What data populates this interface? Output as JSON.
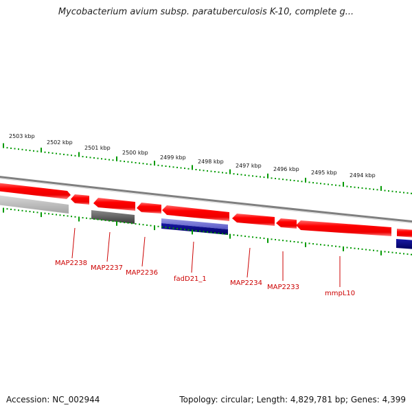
{
  "title": "Mycobacterium avium subsp. paratuberculosis K-10, complete g...",
  "footer": {
    "accession": "Accession: NC_002944",
    "stats": "Topology: circular; Length: 4,829,781 bp; Genes: 4,399"
  },
  "colors": {
    "forward_gene": "#ff0000",
    "reverse_gene": "#000080",
    "pseudo_gene_light": "#b5b5b5",
    "pseudo_gene_dark": "#555555",
    "ruler_tick": "#009900",
    "label": "#cc0000",
    "backbone": "#888888"
  },
  "ruler": {
    "labels": [
      "2503 kbp",
      "2502 kbp",
      "2501 kbp",
      "2500 kbp",
      "2499 kbp",
      "2498 kbp",
      "2497 kbp",
      "2496 kbp",
      "2495 kbp",
      "2494 kbp"
    ]
  },
  "genes": [
    {
      "label": "",
      "track": "outer",
      "kind": "forward",
      "arrow": "right"
    },
    {
      "label": "",
      "track": "outer",
      "kind": "forward",
      "arrow": "left"
    },
    {
      "label": "",
      "track": "outer",
      "kind": "forward",
      "arrow": "left"
    },
    {
      "label": "",
      "track": "outer",
      "kind": "forward",
      "arrow": "left"
    },
    {
      "label": "",
      "track": "outer",
      "kind": "forward",
      "arrow": "left"
    },
    {
      "label": "",
      "track": "outer",
      "kind": "forward",
      "arrow": "left"
    },
    {
      "label": "",
      "track": "outer",
      "kind": "forward",
      "arrow": "left"
    },
    {
      "label": "",
      "track": "outer",
      "kind": "forward",
      "arrow": "left"
    },
    {
      "label": "",
      "track": "inner",
      "kind": "light"
    },
    {
      "label": "",
      "track": "inner",
      "kind": "dark"
    },
    {
      "label": "",
      "track": "inner",
      "kind": "reverse_light"
    },
    {
      "label": "",
      "track": "inner",
      "kind": "reverse"
    },
    {
      "label": "",
      "track": "inner",
      "kind": "reverse"
    }
  ],
  "labels": [
    "MAP2238",
    "MAP2237",
    "MAP2236",
    "fadD21_1",
    "MAP2234",
    "MAP2233",
    "mmpL10"
  ]
}
